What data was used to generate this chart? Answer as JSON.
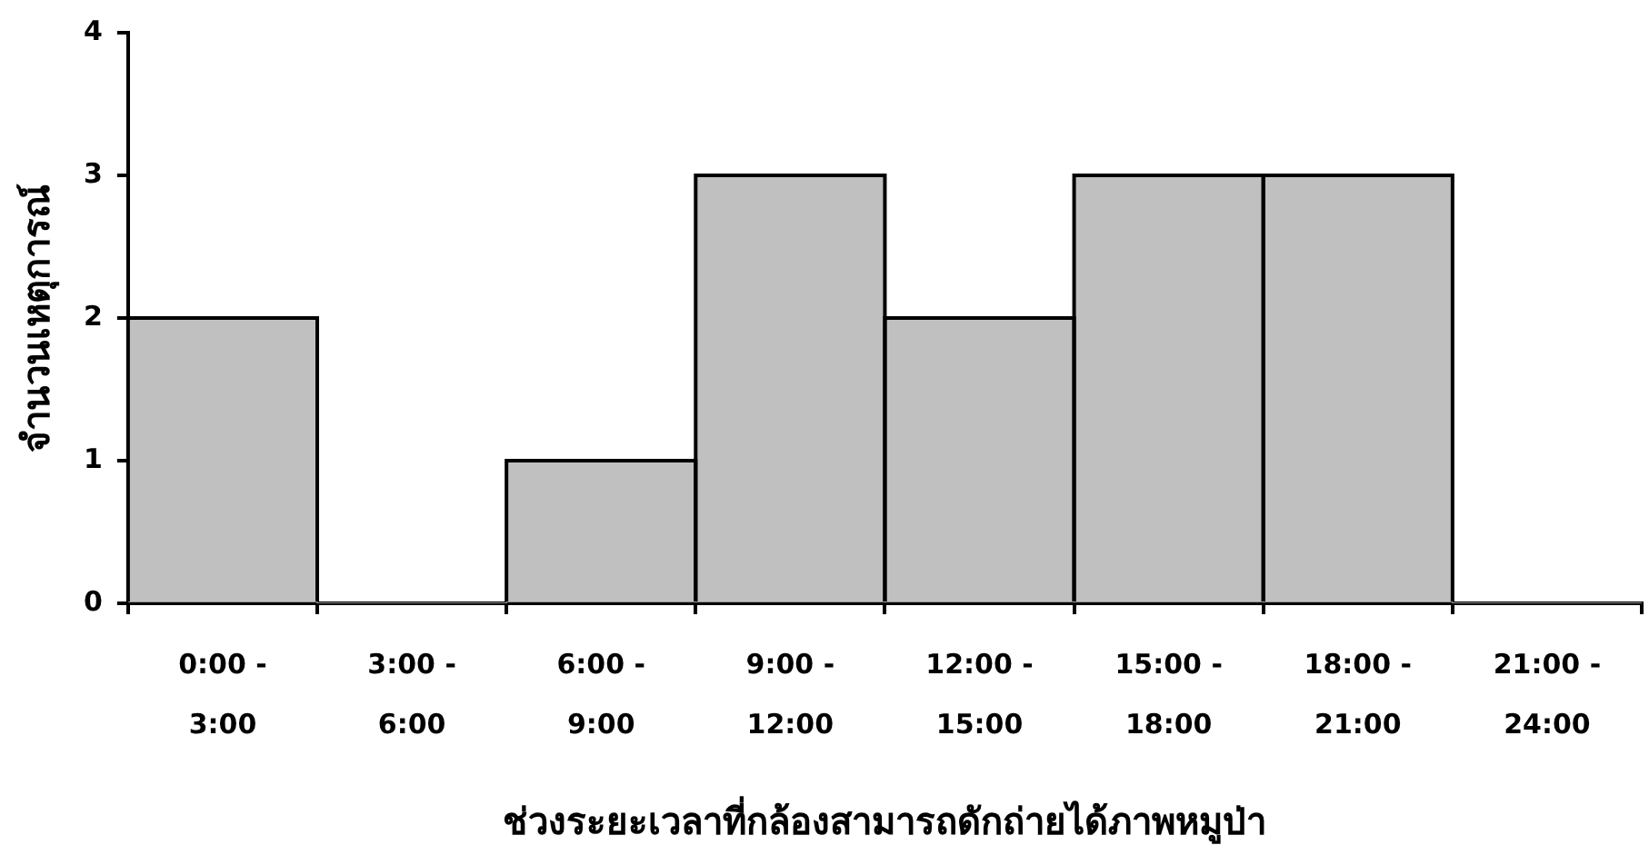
{
  "chart_data": {
    "type": "bar",
    "xlabel": "ช่วงระยะเวลาที่กล้องสามารถดักถ่ายได้ภาพหมูป่า",
    "ylabel": "จำนวนเหตุการณ์",
    "categories": [
      "0:00 - 3:00",
      "3:00 - 6:00",
      "6:00 - 9:00",
      "9:00 - 12:00",
      "12:00 - 15:00",
      "15:00 - 18:00",
      "18:00 - 21:00",
      "21:00 - 24:00"
    ],
    "values": [
      2,
      0,
      1,
      3,
      2,
      3,
      3,
      0
    ],
    "color": "#c0c0c0",
    "ylim": [
      0,
      4
    ],
    "yticks": [
      0,
      1,
      2,
      3,
      4
    ],
    "grid": false,
    "legend": false
  }
}
